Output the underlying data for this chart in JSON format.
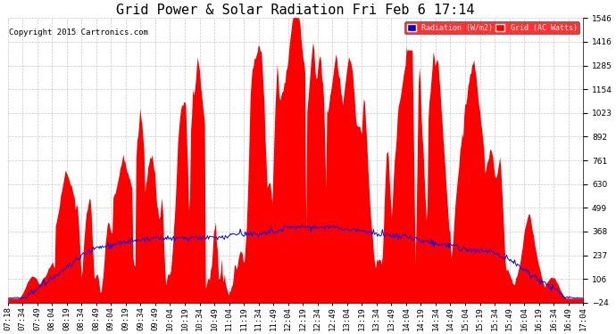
{
  "title": "Grid Power & Solar Radiation Fri Feb 6 17:14",
  "copyright": "Copyright 2015 Cartronics.com",
  "legend_labels": [
    "Radiation (W/m2)",
    "Grid (AC Watts)"
  ],
  "legend_colors_bg": [
    "#0000cc",
    "#ff0000"
  ],
  "y_ticks": [
    -24.5,
    106.4,
    237.4,
    368.3,
    499.2,
    630.1,
    761.0,
    891.9,
    1022.8,
    1153.7,
    1284.7,
    1415.6,
    1546.5
  ],
  "ylim": [
    -24.5,
    1546.5
  ],
  "x_tick_labels": [
    "07:18",
    "07:34",
    "07:49",
    "08:04",
    "08:19",
    "08:34",
    "08:49",
    "09:04",
    "09:19",
    "09:34",
    "09:49",
    "10:04",
    "10:19",
    "10:34",
    "10:49",
    "11:04",
    "11:19",
    "11:34",
    "11:49",
    "12:04",
    "12:19",
    "12:34",
    "12:49",
    "13:04",
    "13:19",
    "13:34",
    "13:49",
    "14:04",
    "14:19",
    "14:34",
    "14:49",
    "15:04",
    "15:19",
    "15:34",
    "15:49",
    "16:04",
    "16:19",
    "16:34",
    "16:49",
    "17:04"
  ],
  "background_color": "#ffffff",
  "plot_bg_color": "#ffffff",
  "grid_color": "#c8c8c8",
  "red_fill_color": "#ff0000",
  "blue_line_color": "#0000ff",
  "title_fontsize": 11,
  "copyright_fontsize": 6.5,
  "tick_fontsize": 6.5
}
